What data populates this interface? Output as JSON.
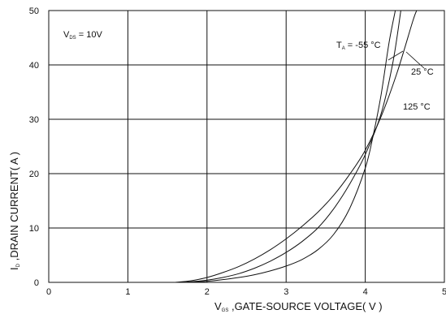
{
  "chart_data": {
    "type": "line",
    "xlabel": {
      "symbol": "V",
      "subscript": "GS",
      "text": " ,GATE-SOURCE VOLTAGE( V )"
    },
    "ylabel": {
      "symbol": "I",
      "subscript": "D",
      "text": " ,DRAIN CURRENT( A )"
    },
    "xlim": [
      0,
      5
    ],
    "ylim": [
      0,
      50
    ],
    "x_ticks": [
      "0",
      "1",
      "2",
      "3",
      "4",
      "5"
    ],
    "y_ticks": [
      "0",
      "10",
      "20",
      "30",
      "40",
      "50"
    ],
    "grid": true,
    "condition": {
      "symbol": "V",
      "subscript": "DS",
      "text": " = 10V"
    },
    "series": [
      {
        "name": "T = -55 °C",
        "label": {
          "symbol": "T",
          "subscript": "A",
          "text": " = -55 °C"
        },
        "x": [
          1.7,
          1.8,
          2.0,
          2.2,
          2.4,
          2.6,
          2.8,
          3.0,
          3.2,
          3.4,
          3.6,
          3.8,
          4.0,
          4.1,
          4.2,
          4.3,
          4.38
        ],
        "y": [
          0,
          0.05,
          0.2,
          0.5,
          0.9,
          1.4,
          2.1,
          3.0,
          4.2,
          6.0,
          8.8,
          13.5,
          21.0,
          27.0,
          34.5,
          44.0,
          50
        ]
      },
      {
        "name": "25 °C",
        "label": {
          "text": "25 °C"
        },
        "x": [
          1.65,
          1.8,
          2.0,
          2.2,
          2.4,
          2.6,
          2.8,
          3.0,
          3.2,
          3.4,
          3.6,
          3.8,
          4.0,
          4.2,
          4.35,
          4.45
        ],
        "y": [
          0,
          0.1,
          0.4,
          0.9,
          1.6,
          2.6,
          3.9,
          5.5,
          7.5,
          10.0,
          13.5,
          18.0,
          23.5,
          31.0,
          40.5,
          50
        ]
      },
      {
        "name": "125 °C",
        "label": {
          "text": "125 °C"
        },
        "x": [
          1.6,
          1.8,
          2.0,
          2.2,
          2.4,
          2.6,
          2.8,
          3.0,
          3.2,
          3.4,
          3.6,
          3.8,
          4.0,
          4.2,
          4.4,
          4.6,
          4.65
        ],
        "y": [
          0,
          0.3,
          0.9,
          1.8,
          2.9,
          4.3,
          6.0,
          8.0,
          10.3,
          12.9,
          16.0,
          19.8,
          24.3,
          30.5,
          38.5,
          48.0,
          50
        ]
      }
    ]
  }
}
